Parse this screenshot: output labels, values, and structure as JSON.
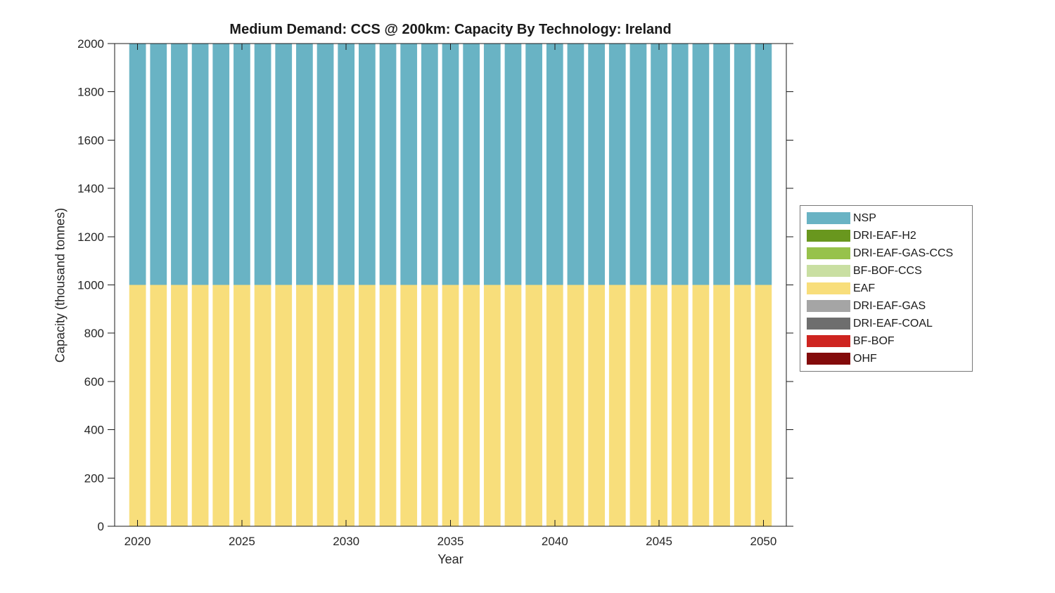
{
  "chart_data": {
    "type": "bar",
    "stacked": true,
    "title": "Medium Demand: CCS @ 200km: Capacity By Technology: Ireland",
    "xlabel": "Year",
    "ylabel": "Capacity (thousand tonnes)",
    "x": [
      2020,
      2021,
      2022,
      2023,
      2024,
      2025,
      2026,
      2027,
      2028,
      2029,
      2030,
      2031,
      2032,
      2033,
      2034,
      2035,
      2036,
      2037,
      2038,
      2039,
      2040,
      2041,
      2042,
      2043,
      2044,
      2045,
      2046,
      2047,
      2048,
      2049,
      2050
    ],
    "xticks": [
      2020,
      2025,
      2030,
      2035,
      2040,
      2045,
      2050
    ],
    "yticks": [
      0,
      200,
      400,
      600,
      800,
      1000,
      1200,
      1400,
      1600,
      1800,
      2000
    ],
    "xlim": [
      2018.9,
      2051.1
    ],
    "ylim": [
      0,
      2000
    ],
    "bar_width": 0.8,
    "grid": false,
    "legend_position": "right-center",
    "axis_color": "#1a1a1a",
    "text_color": "#262626",
    "series": [
      {
        "name": "NSP",
        "color": "#69B3C4",
        "values": [
          1000,
          1000,
          1000,
          1000,
          1000,
          1000,
          1000,
          1000,
          1000,
          1000,
          1000,
          1000,
          1000,
          1000,
          1000,
          1000,
          1000,
          1000,
          1000,
          1000,
          1000,
          1000,
          1000,
          1000,
          1000,
          1000,
          1000,
          1000,
          1000,
          1000,
          1000
        ]
      },
      {
        "name": "DRI-EAF-H2",
        "color": "#69971E",
        "values": [
          0,
          0,
          0,
          0,
          0,
          0,
          0,
          0,
          0,
          0,
          0,
          0,
          0,
          0,
          0,
          0,
          0,
          0,
          0,
          0,
          0,
          0,
          0,
          0,
          0,
          0,
          0,
          0,
          0,
          0,
          0
        ]
      },
      {
        "name": "DRI-EAF-GAS-CCS",
        "color": "#97C24B",
        "values": [
          0,
          0,
          0,
          0,
          0,
          0,
          0,
          0,
          0,
          0,
          0,
          0,
          0,
          0,
          0,
          0,
          0,
          0,
          0,
          0,
          0,
          0,
          0,
          0,
          0,
          0,
          0,
          0,
          0,
          0,
          0
        ]
      },
      {
        "name": "BF-BOF-CCS",
        "color": "#C9DFA2",
        "values": [
          0,
          0,
          0,
          0,
          0,
          0,
          0,
          0,
          0,
          0,
          0,
          0,
          0,
          0,
          0,
          0,
          0,
          0,
          0,
          0,
          0,
          0,
          0,
          0,
          0,
          0,
          0,
          0,
          0,
          0,
          0
        ]
      },
      {
        "name": "EAF",
        "color": "#F8DE7B",
        "values": [
          1000,
          1000,
          1000,
          1000,
          1000,
          1000,
          1000,
          1000,
          1000,
          1000,
          1000,
          1000,
          1000,
          1000,
          1000,
          1000,
          1000,
          1000,
          1000,
          1000,
          1000,
          1000,
          1000,
          1000,
          1000,
          1000,
          1000,
          1000,
          1000,
          1000,
          1000
        ]
      },
      {
        "name": "DRI-EAF-GAS",
        "color": "#A5A5A5",
        "values": [
          0,
          0,
          0,
          0,
          0,
          0,
          0,
          0,
          0,
          0,
          0,
          0,
          0,
          0,
          0,
          0,
          0,
          0,
          0,
          0,
          0,
          0,
          0,
          0,
          0,
          0,
          0,
          0,
          0,
          0,
          0
        ]
      },
      {
        "name": "DRI-EAF-COAL",
        "color": "#6E6E6E",
        "values": [
          0,
          0,
          0,
          0,
          0,
          0,
          0,
          0,
          0,
          0,
          0,
          0,
          0,
          0,
          0,
          0,
          0,
          0,
          0,
          0,
          0,
          0,
          0,
          0,
          0,
          0,
          0,
          0,
          0,
          0,
          0
        ]
      },
      {
        "name": "BF-BOF",
        "color": "#CE2420",
        "values": [
          0,
          0,
          0,
          0,
          0,
          0,
          0,
          0,
          0,
          0,
          0,
          0,
          0,
          0,
          0,
          0,
          0,
          0,
          0,
          0,
          0,
          0,
          0,
          0,
          0,
          0,
          0,
          0,
          0,
          0,
          0
        ]
      },
      {
        "name": "OHF",
        "color": "#830B0B",
        "values": [
          0,
          0,
          0,
          0,
          0,
          0,
          0,
          0,
          0,
          0,
          0,
          0,
          0,
          0,
          0,
          0,
          0,
          0,
          0,
          0,
          0,
          0,
          0,
          0,
          0,
          0,
          0,
          0,
          0,
          0,
          0
        ]
      }
    ]
  }
}
